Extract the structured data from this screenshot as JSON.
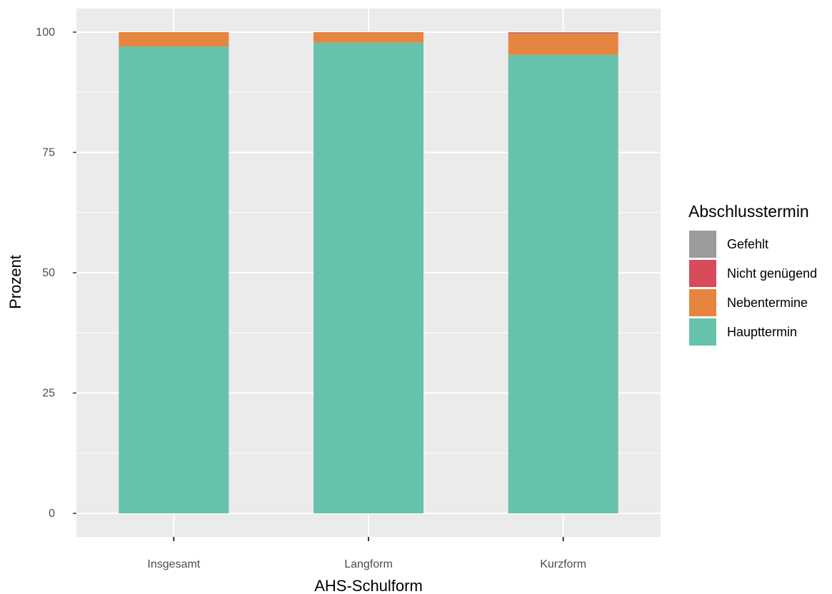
{
  "chart_data": {
    "type": "bar",
    "stacked": true,
    "xlabel": "AHS-Schulform",
    "ylabel": "Prozent",
    "ylim": [
      0,
      105
    ],
    "yticks": [
      0,
      25,
      50,
      75,
      100
    ],
    "categories": [
      "Insgesamt",
      "Langform",
      "Kurzform"
    ],
    "series": [
      {
        "name": "Haupttermin",
        "color": "#66C2AA",
        "values": [
          97.0,
          97.8,
          95.3
        ]
      },
      {
        "name": "Nebentermine",
        "color": "#E6853F",
        "values": [
          3.0,
          2.2,
          4.5
        ]
      },
      {
        "name": "Nicht genügend",
        "color": "#D84B5A",
        "values": [
          0.0,
          0.0,
          0.1
        ]
      },
      {
        "name": "Gefehlt",
        "color": "#9B9B9B",
        "values": [
          0.0,
          0.0,
          0.1
        ]
      }
    ],
    "legend": {
      "title": "Abschlusstermin",
      "position": "right",
      "order": [
        "Gefehlt",
        "Nicht genügend",
        "Nebentermine",
        "Haupttermin"
      ]
    },
    "panel_background": "#EBEBEB",
    "grid": true
  }
}
